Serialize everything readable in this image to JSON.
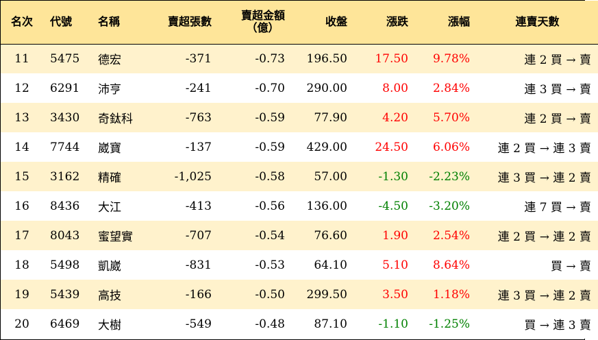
{
  "headers": {
    "rank": "名次",
    "code": "代號",
    "name": "名稱",
    "sell_shares": "賣超張數",
    "sell_amount_line1": "賣超金額",
    "sell_amount_line2": "（億）",
    "close": "收盤",
    "change": "漲跌",
    "change_pct": "漲幅",
    "streak": "連賣天數"
  },
  "colors": {
    "header_bg": "#fee599",
    "row_odd_bg": "#fff2cc",
    "row_even_bg": "#ffffff",
    "up": "#ff0000",
    "down": "#008000"
  },
  "rows": [
    {
      "rank": "11",
      "code": "5475",
      "name": "德宏",
      "sell_shares": "-371",
      "sell_amount": "-0.73",
      "close": "196.50",
      "change": "17.50",
      "change_pct": "9.78%",
      "direction": "up",
      "streak": "連 2 買 → 賣"
    },
    {
      "rank": "12",
      "code": "6291",
      "name": "沛亨",
      "sell_shares": "-241",
      "sell_amount": "-0.70",
      "close": "290.00",
      "change": "8.00",
      "change_pct": "2.84%",
      "direction": "up",
      "streak": "連 3 買 → 賣"
    },
    {
      "rank": "13",
      "code": "3430",
      "name": "奇鈦科",
      "sell_shares": "-763",
      "sell_amount": "-0.59",
      "close": "77.90",
      "change": "4.20",
      "change_pct": "5.70%",
      "direction": "up",
      "streak": "連 2 買 → 賣"
    },
    {
      "rank": "14",
      "code": "7744",
      "name": "崴寶",
      "sell_shares": "-137",
      "sell_amount": "-0.59",
      "close": "429.00",
      "change": "24.50",
      "change_pct": "6.06%",
      "direction": "up",
      "streak": "連 2 買 → 連 3 賣"
    },
    {
      "rank": "15",
      "code": "3162",
      "name": "精確",
      "sell_shares": "-1,025",
      "sell_amount": "-0.58",
      "close": "57.00",
      "change": "-1.30",
      "change_pct": "-2.23%",
      "direction": "down",
      "streak": "連 3 買 → 連 2 賣"
    },
    {
      "rank": "16",
      "code": "8436",
      "name": "大江",
      "sell_shares": "-413",
      "sell_amount": "-0.56",
      "close": "136.00",
      "change": "-4.50",
      "change_pct": "-3.20%",
      "direction": "down",
      "streak": "連 7 買 → 賣"
    },
    {
      "rank": "17",
      "code": "8043",
      "name": "蜜望實",
      "sell_shares": "-707",
      "sell_amount": "-0.54",
      "close": "76.60",
      "change": "1.90",
      "change_pct": "2.54%",
      "direction": "up",
      "streak": "連 2 買 → 連 2 賣"
    },
    {
      "rank": "18",
      "code": "5498",
      "name": "凱崴",
      "sell_shares": "-831",
      "sell_amount": "-0.53",
      "close": "64.10",
      "change": "5.10",
      "change_pct": "8.64%",
      "direction": "up",
      "streak": "買 → 賣"
    },
    {
      "rank": "19",
      "code": "5439",
      "name": "高技",
      "sell_shares": "-166",
      "sell_amount": "-0.50",
      "close": "299.50",
      "change": "3.50",
      "change_pct": "1.18%",
      "direction": "up",
      "streak": "連 3 買 → 連 2 賣"
    },
    {
      "rank": "20",
      "code": "6469",
      "name": "大樹",
      "sell_shares": "-549",
      "sell_amount": "-0.48",
      "close": "87.10",
      "change": "-1.10",
      "change_pct": "-1.25%",
      "direction": "down",
      "streak": "買 → 連 3 賣"
    }
  ]
}
